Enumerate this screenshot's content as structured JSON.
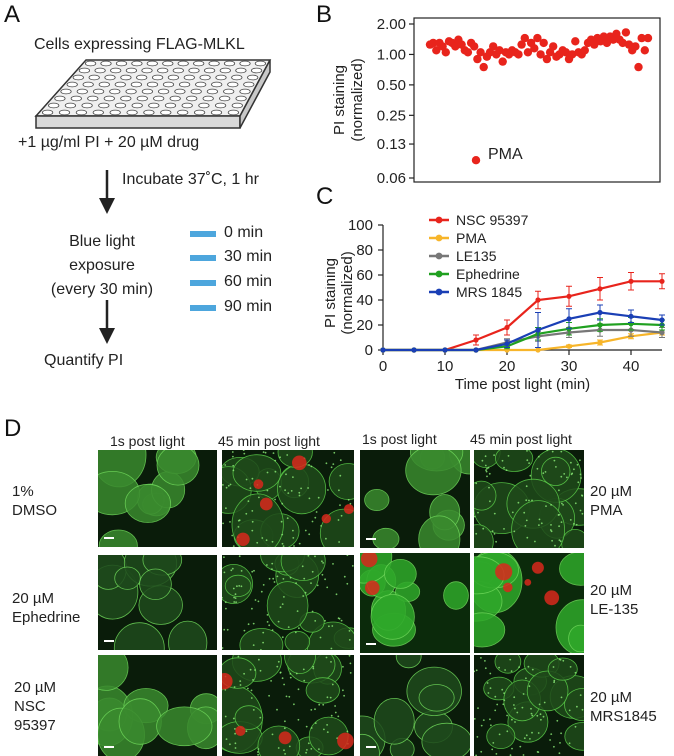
{
  "panel_a": {
    "letter": "A",
    "plate_label": "Cells expressing FLAG-MLKL",
    "reagents": "+1 µg/ml PI + 20 µM drug",
    "incubate": "Incubate 37˚C, 1 hr",
    "exposure_lines": [
      "Blue light",
      "exposure",
      "(every 30 min)"
    ],
    "light_times": [
      "0 min",
      "30 min",
      "60 min",
      "90 min"
    ],
    "quantify": "Quantify PI",
    "light_color": "#4da6dd"
  },
  "panel_b": {
    "letter": "B",
    "annotation": "PMA"
  },
  "panel_c": {
    "letter": "C"
  },
  "panel_d": {
    "letter": "D",
    "col_header_1s": "1s post light",
    "col_header_45": "45 min post light",
    "left_conditions": [
      [
        "1%",
        "DMSO"
      ],
      [
        "20 µM",
        "Ephedrine"
      ],
      [
        "20 µM",
        "NSC",
        "95397"
      ]
    ],
    "right_conditions": [
      [
        "20 µM",
        "PMA"
      ],
      [
        "20 µM",
        "LE-135"
      ],
      [
        "20 µM",
        "MRS1845"
      ]
    ]
  },
  "chart_data": [
    {
      "type": "scatter",
      "ylabel": "PI staining\n(normalized)",
      "yscale": "log",
      "ylim": [
        0.06,
        2.0
      ],
      "yticks": [
        "2.00",
        "1.00",
        "0.50",
        "0.25",
        "0.13",
        "0.06"
      ],
      "point_color": "#e8241c",
      "values": [
        1.25,
        1.3,
        1.1,
        1.3,
        1.2,
        1.05,
        1.35,
        1.3,
        1.2,
        1.4,
        1.25,
        1.1,
        1.05,
        1.3,
        1.2,
        0.9,
        1.05,
        0.75,
        0.95,
        1.05,
        1.2,
        1.0,
        1.1,
        0.85,
        1.05,
        1.0,
        1.1,
        1.05,
        1.0,
        1.25,
        1.45,
        1.05,
        1.3,
        1.15,
        1.45,
        1.0,
        1.3,
        0.9,
        1.05,
        1.2,
        0.95,
        1.0,
        1.1,
        1.05,
        0.9,
        1.0,
        1.35,
        1.05,
        1.0,
        1.1,
        1.3,
        1.4,
        1.25,
        1.45,
        1.35,
        1.5,
        1.3,
        1.5,
        1.4,
        1.6,
        1.4,
        1.3,
        1.65,
        1.25,
        1.1,
        1.2,
        0.75,
        1.45,
        1.1,
        1.45
      ],
      "outlier": {
        "label": "PMA",
        "value": 0.09
      }
    },
    {
      "type": "line",
      "xlabel": "Time post light (min)",
      "ylabel": "PI staining\n(normalized)",
      "xlim": [
        0,
        45
      ],
      "ylim": [
        0,
        100
      ],
      "xticks": [
        0,
        10,
        20,
        30,
        40
      ],
      "yticks": [
        0,
        20,
        40,
        60,
        80,
        100
      ],
      "legend_placement": "top-left",
      "x": [
        0,
        5,
        10,
        15,
        20,
        25,
        30,
        35,
        40,
        45
      ],
      "series": [
        {
          "name": "NSC 95397",
          "color": "#e8241c",
          "values": [
            0,
            0,
            0,
            8,
            18,
            40,
            43,
            49,
            55,
            55
          ],
          "errors": [
            0,
            0,
            0,
            4,
            6,
            7,
            8,
            9,
            7,
            6
          ]
        },
        {
          "name": "PMA",
          "color": "#f7b52a",
          "values": [
            0,
            0,
            0,
            0,
            0,
            0,
            3,
            6,
            11,
            14
          ],
          "errors": [
            0,
            0,
            0,
            0,
            0,
            0,
            1,
            2,
            2,
            2
          ]
        },
        {
          "name": "LE135",
          "color": "#777777",
          "values": [
            0,
            0,
            0,
            0,
            6,
            11,
            14,
            16,
            16,
            14
          ],
          "errors": [
            0,
            0,
            0,
            0,
            3,
            4,
            4,
            5,
            5,
            4
          ]
        },
        {
          "name": "Ephedrine",
          "color": "#20a020",
          "values": [
            0,
            0,
            0,
            0,
            3,
            13,
            17,
            20,
            21,
            20
          ],
          "errors": [
            0,
            0,
            0,
            0,
            2,
            5,
            5,
            5,
            5,
            4
          ]
        },
        {
          "name": "MRS 1845",
          "color": "#1a3fb5",
          "values": [
            0,
            0,
            0,
            0,
            5,
            16,
            25,
            30,
            27,
            24
          ],
          "errors": [
            0,
            0,
            0,
            0,
            3,
            14,
            8,
            6,
            5,
            4
          ]
        }
      ]
    }
  ]
}
